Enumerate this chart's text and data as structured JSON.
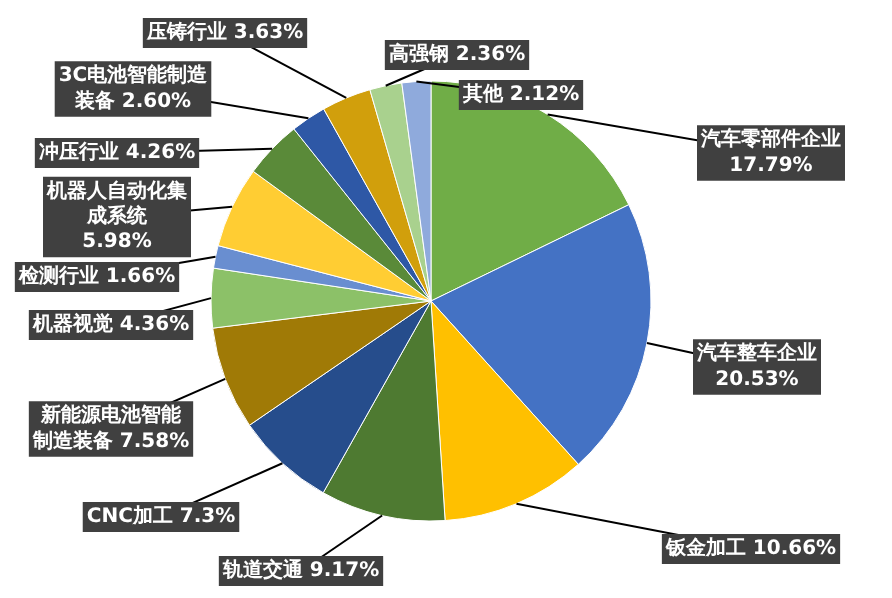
{
  "chart_data": {
    "type": "pie",
    "categories": [
      "汽车零部件企业",
      "汽车整车企业",
      "钣金加工",
      "轨道交通",
      "CNC加工",
      "新能源电池智能制造装备",
      "机器视觉",
      "检测行业",
      "机器人自动化集成系统",
      "冲压行业",
      "3C电池智能制造装备",
      "压铸行业",
      "高强钢",
      "其他"
    ],
    "values": [
      17.79,
      20.53,
      10.66,
      9.17,
      7.3,
      7.58,
      4.36,
      1.66,
      5.98,
      4.26,
      2.6,
      3.63,
      2.36,
      2.12
    ],
    "colors": [
      "#70ad47",
      "#4472c4",
      "#ffc000",
      "#4e7a31",
      "#264d8c",
      "#a07a06",
      "#8cc168",
      "#698ed0",
      "#ffcd33",
      "#5a8a39",
      "#2e58a6",
      "#d19f0c",
      "#a9d18e",
      "#8faadc"
    ],
    "value_labels": [
      "17.79%",
      "20.53%",
      "10.66%",
      "9.17%",
      "7.3%",
      "7.58%",
      "4.36%",
      "1.66%",
      "5.98%",
      "4.26%",
      "2.60%",
      "3.63%",
      "2.36%",
      "2.12%"
    ]
  }
}
